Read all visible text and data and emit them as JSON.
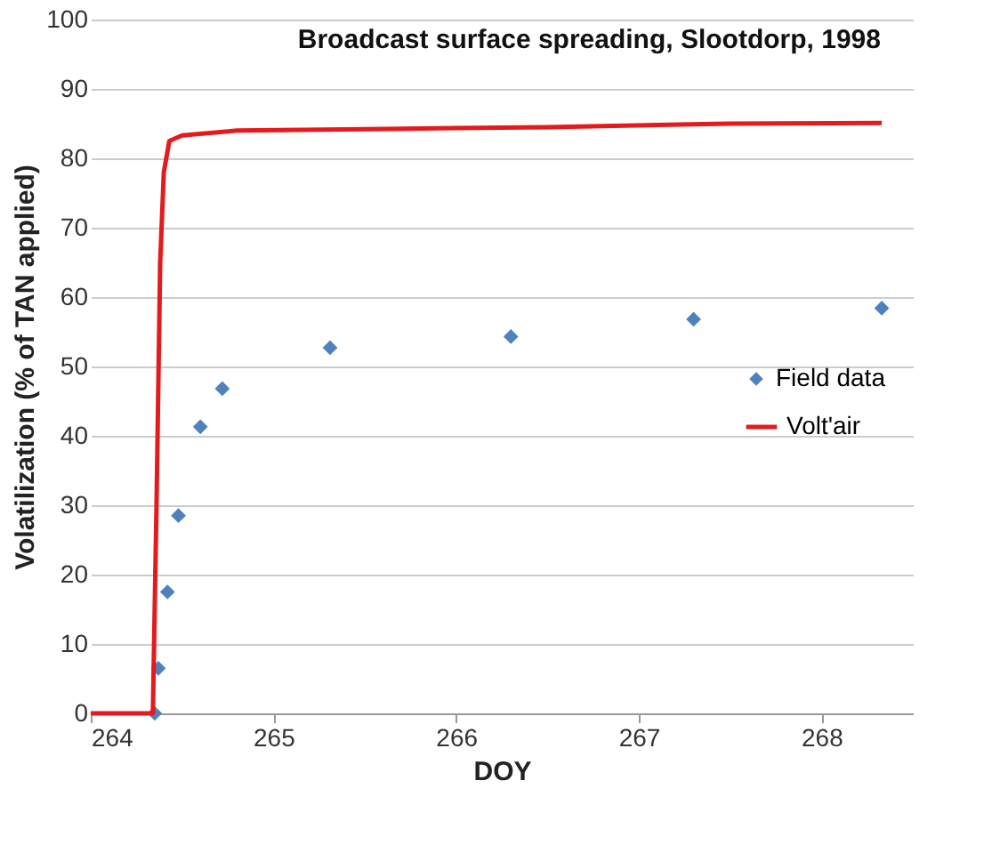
{
  "chart_data": {
    "type": "scatter",
    "title": "Broadcast surface spreading, Slootdorp, 1998",
    "xlabel": "DOY",
    "ylabel": "Volatilization (% of TAN applied)",
    "xlim": [
      264,
      268.5
    ],
    "xticks": [
      264,
      265,
      266,
      267,
      268
    ],
    "ylim": [
      0,
      100
    ],
    "yticks": [
      0,
      10,
      20,
      30,
      40,
      50,
      60,
      70,
      80,
      90,
      100
    ],
    "grid": "y",
    "legend": "right",
    "series": [
      {
        "name": "Field data",
        "type": "scatter",
        "marker": "diamond",
        "color": "#4f81bd",
        "x": [
          264.35,
          264.37,
          264.42,
          264.48,
          264.6,
          264.72,
          265.31,
          266.3,
          267.3,
          268.33
        ],
        "values": [
          0,
          6.5,
          17.5,
          28.5,
          41.3,
          46.8,
          52.7,
          54.3,
          56.8,
          58.4
        ]
      },
      {
        "name": "Volt'air",
        "type": "line",
        "marker": "none",
        "color": "#e41a1c",
        "x": [
          264,
          264.34,
          264.36,
          264.38,
          264.4,
          264.43,
          264.5,
          264.8,
          265.5,
          266.5,
          267.5,
          268.33
        ],
        "values": [
          0,
          0,
          30,
          65,
          78,
          82.5,
          83.3,
          84,
          84.2,
          84.5,
          85,
          85.1
        ]
      }
    ]
  }
}
